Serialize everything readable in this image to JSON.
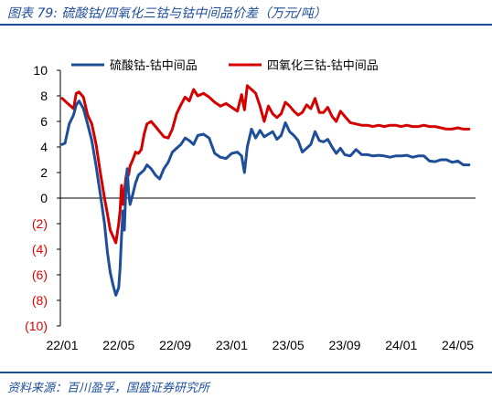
{
  "figure": {
    "title": "图表 79:  硫酸钴/四氧化三钴与钴中间品价差（万元/吨）",
    "source": "资料来源：百川盈孚，国盛证券研究所"
  },
  "chart_data": {
    "type": "line",
    "ylim": [
      -10,
      10
    ],
    "yticks": [
      10,
      8,
      6,
      4,
      2,
      0,
      -2,
      -4,
      -6,
      -8,
      -10
    ],
    "ytick_labels": [
      "10",
      "8",
      "6",
      "4",
      "2",
      "0",
      "(2)",
      "(4)",
      "(6)",
      "(8)",
      "(10)"
    ],
    "negative_tick_color": "#e00000",
    "xtick_labels": [
      "22/01",
      "22/05",
      "22/09",
      "23/01",
      "23/05",
      "23/09",
      "24/01",
      "24/05"
    ],
    "legend_position": "top",
    "series": [
      {
        "name": "硫酸钴-钴中间品",
        "color": "#1f4e99",
        "x": [
          0,
          0.2,
          0.5,
          0.8,
          1.0,
          1.2,
          1.5,
          1.8,
          2.1,
          2.4,
          2.7,
          3.0,
          3.2,
          3.4,
          3.6,
          3.8,
          4.0,
          4.1,
          4.2,
          4.3,
          4.4,
          4.5,
          4.6,
          4.7,
          4.8,
          5.0,
          5.2,
          5.4,
          5.6,
          5.8,
          6.0,
          6.3,
          6.6,
          6.9,
          7.2,
          7.5,
          7.8,
          8.1,
          8.4,
          8.7,
          9.0,
          9.3,
          9.6,
          10.0,
          10.4,
          10.8,
          11.2,
          11.6,
          12.0,
          12.4,
          12.7,
          12.9,
          13.1,
          13.4,
          13.7,
          14.0,
          14.3,
          14.6,
          14.9,
          15.2,
          15.5,
          15.8,
          16.1,
          16.4,
          16.7,
          17.0,
          17.3,
          17.6,
          17.9,
          18.2,
          18.5,
          18.8,
          19.1,
          19.4,
          19.7,
          20.0,
          20.4,
          20.8,
          21.2,
          21.6,
          22.0,
          22.4,
          22.8,
          23.2,
          23.6,
          24.0,
          24.4,
          24.8,
          25.2,
          25.6,
          26.0,
          26.4,
          26.8,
          27.2,
          27.6,
          28.0,
          28.4,
          28.8
        ],
        "y": [
          4.2,
          4.3,
          5.8,
          6.5,
          7.3,
          7.6,
          7.0,
          5.8,
          4.5,
          2.5,
          0.3,
          -2.0,
          -4.2,
          -5.8,
          -6.8,
          -7.6,
          -7.0,
          -5.5,
          -3.0,
          -1.0,
          -2.5,
          0.5,
          2.3,
          0.5,
          -0.5,
          0.3,
          1.2,
          1.8,
          2.0,
          2.2,
          2.6,
          2.3,
          1.8,
          1.5,
          2.3,
          2.8,
          3.6,
          3.9,
          4.2,
          4.7,
          4.5,
          4.2,
          4.9,
          5.0,
          4.7,
          3.5,
          3.2,
          3.1,
          3.5,
          3.6,
          3.3,
          2.0,
          4.0,
          5.4,
          4.7,
          5.3,
          4.8,
          5.0,
          5.2,
          4.6,
          4.9,
          5.9,
          5.2,
          4.9,
          4.5,
          3.6,
          3.9,
          4.2,
          5.2,
          4.5,
          4.4,
          4.6,
          4.0,
          3.5,
          3.9,
          3.4,
          3.3,
          3.8,
          3.4,
          3.4,
          3.3,
          3.35,
          3.3,
          3.2,
          3.3,
          3.3,
          3.35,
          3.2,
          3.3,
          3.3,
          2.9,
          2.85,
          3.0,
          3.0,
          2.8,
          2.9,
          2.6,
          2.6
        ]
      },
      {
        "name": "四氧化三钴-钴中间品",
        "color": "#d40000",
        "x": [
          0,
          0.2,
          0.5,
          0.8,
          1.0,
          1.2,
          1.5,
          1.8,
          2.1,
          2.4,
          2.7,
          3.0,
          3.2,
          3.4,
          3.6,
          3.8,
          4.0,
          4.1,
          4.2,
          4.3,
          4.4,
          4.5,
          4.6,
          4.7,
          4.8,
          5.0,
          5.2,
          5.4,
          5.6,
          5.8,
          6.0,
          6.3,
          6.6,
          6.9,
          7.2,
          7.5,
          7.8,
          8.1,
          8.4,
          8.7,
          9.0,
          9.3,
          9.6,
          10.0,
          10.4,
          10.8,
          11.2,
          11.6,
          12.0,
          12.4,
          12.7,
          12.9,
          13.1,
          13.4,
          13.7,
          14.0,
          14.3,
          14.6,
          14.9,
          15.2,
          15.5,
          15.8,
          16.1,
          16.4,
          16.7,
          17.0,
          17.3,
          17.6,
          17.9,
          18.2,
          18.5,
          18.8,
          19.1,
          19.4,
          19.7,
          20.0,
          20.4,
          20.8,
          21.2,
          21.6,
          22.0,
          22.4,
          22.8,
          23.2,
          23.6,
          24.0,
          24.4,
          24.8,
          25.2,
          25.6,
          26.0,
          26.4,
          26.8,
          27.2,
          27.6,
          28.0,
          28.4,
          28.8
        ],
        "y": [
          7.8,
          7.6,
          7.3,
          7.0,
          8.2,
          8.3,
          7.9,
          6.5,
          5.8,
          4.2,
          2.0,
          0.0,
          -1.2,
          -2.5,
          -3.0,
          -3.5,
          -2.0,
          -1.0,
          1.0,
          -0.5,
          0.5,
          1.5,
          2.2,
          1.8,
          2.5,
          3.0,
          3.6,
          3.5,
          3.8,
          5.0,
          5.8,
          6.0,
          5.6,
          5.2,
          4.8,
          4.7,
          5.4,
          6.6,
          7.3,
          7.9,
          7.6,
          8.5,
          8.0,
          8.2,
          7.9,
          7.5,
          7.2,
          7.4,
          7.1,
          6.8,
          8.1,
          6.9,
          8.8,
          8.5,
          8.2,
          7.2,
          6.0,
          7.2,
          6.6,
          6.3,
          6.6,
          7.5,
          7.2,
          6.8,
          6.5,
          6.7,
          7.3,
          7.0,
          7.8,
          6.7,
          6.7,
          7.1,
          6.4,
          6.0,
          6.8,
          6.4,
          5.9,
          5.8,
          5.7,
          5.7,
          5.6,
          5.7,
          5.6,
          5.7,
          5.7,
          5.6,
          5.7,
          5.6,
          5.6,
          5.7,
          5.6,
          5.6,
          5.5,
          5.4,
          5.4,
          5.5,
          5.4,
          5.4
        ]
      }
    ]
  }
}
